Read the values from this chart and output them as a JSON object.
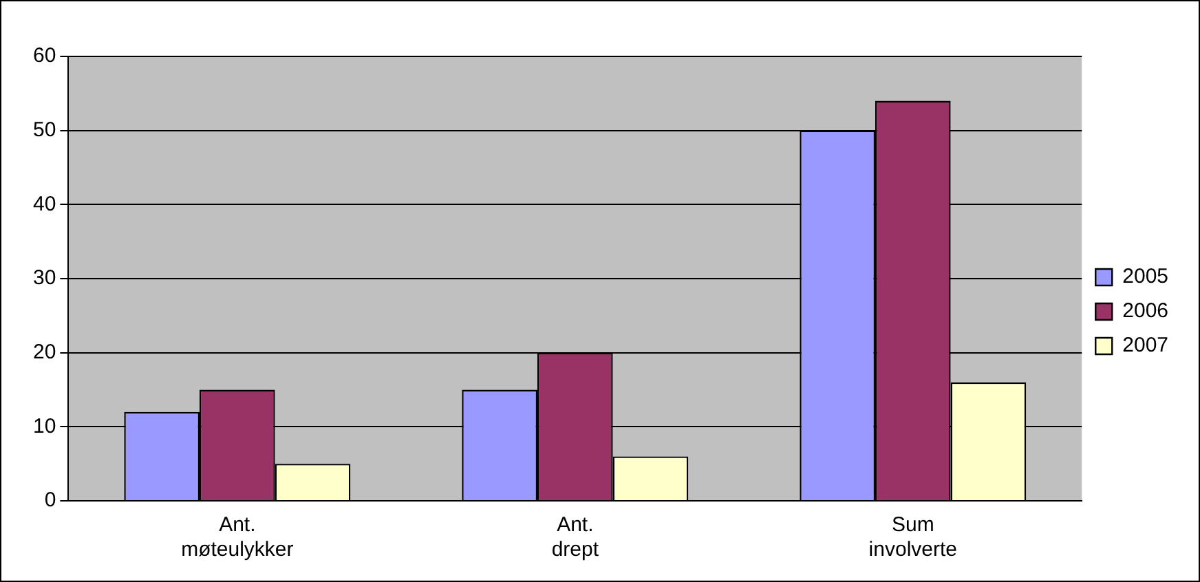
{
  "chart_data": {
    "type": "bar",
    "categories": [
      "Ant. møteulykker",
      "Ant. drept",
      "Sum involverte"
    ],
    "series": [
      {
        "name": "2005",
        "color": "#9999ff",
        "values": [
          12,
          15,
          50
        ]
      },
      {
        "name": "2006",
        "color": "#993366",
        "values": [
          15,
          20,
          54
        ]
      },
      {
        "name": "2007",
        "color": "#ffffcc",
        "values": [
          5,
          6,
          16
        ]
      }
    ],
    "ylim": [
      0,
      60
    ],
    "yticks": [
      0,
      10,
      20,
      30,
      40,
      50,
      60
    ],
    "grid": "y",
    "legend": "right"
  }
}
